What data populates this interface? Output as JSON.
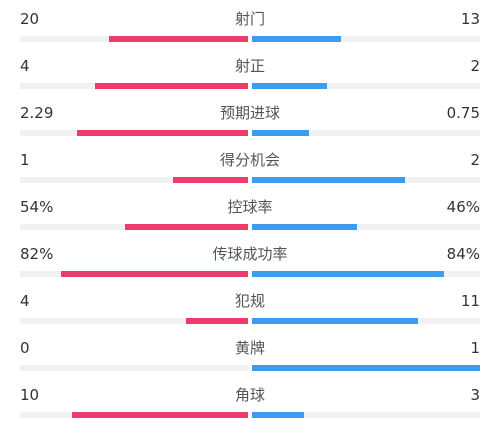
{
  "colors": {
    "home": "#ee3a6c",
    "away": "#3d9cf0"
  },
  "stats": [
    {
      "label": "射门",
      "home": "20",
      "away": "13",
      "home_share": 0.61,
      "away_share": 0.39
    },
    {
      "label": "射正",
      "home": "4",
      "away": "2",
      "home_share": 0.67,
      "away_share": 0.33
    },
    {
      "label": "预期进球",
      "home": "2.29",
      "away": "0.75",
      "home_share": 0.75,
      "away_share": 0.25
    },
    {
      "label": "得分机会",
      "home": "1",
      "away": "2",
      "home_share": 0.33,
      "away_share": 0.67
    },
    {
      "label": "控球率",
      "home": "54%",
      "away": "46%",
      "home_share": 0.54,
      "away_share": 0.46
    },
    {
      "label": "传球成功率",
      "home": "82%",
      "away": "84%",
      "home_share": 0.82,
      "away_share": 0.84
    },
    {
      "label": "犯规",
      "home": "4",
      "away": "11",
      "home_share": 0.27,
      "away_share": 0.73
    },
    {
      "label": "黄牌",
      "home": "0",
      "away": "1",
      "home_share": 0.0,
      "away_share": 1.0
    },
    {
      "label": "角球",
      "home": "10",
      "away": "3",
      "home_share": 0.77,
      "away_share": 0.23
    }
  ]
}
